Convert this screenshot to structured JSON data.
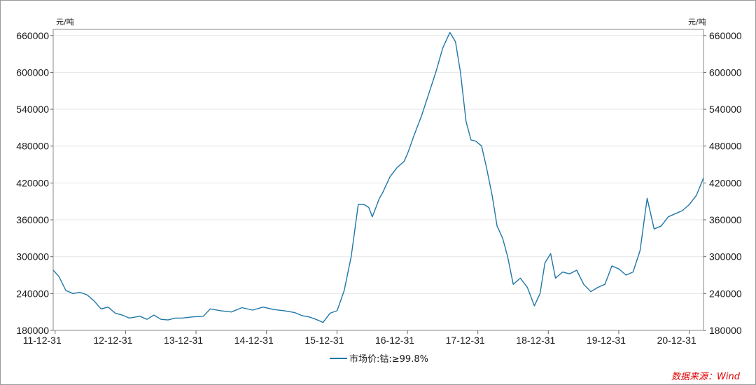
{
  "chart_data": {
    "type": "line",
    "unit_left": "元/吨",
    "unit_right": "元/吨",
    "ylim": [
      180000,
      670000
    ],
    "yticks": [
      180000,
      240000,
      300000,
      360000,
      420000,
      480000,
      540000,
      600000,
      660000
    ],
    "ytick_labels": [
      "180000",
      "240000",
      "300000",
      "360000",
      "420000",
      "480000",
      "540000",
      "600000",
      "660000"
    ],
    "xticks": [
      2011.9973,
      2012.9973,
      2013.9973,
      2014.9973,
      2015.9973,
      2016.9973,
      2017.9973,
      2018.9973,
      2019.9973,
      2020.9973
    ],
    "xtick_labels": [
      "11-12-31",
      "12-12-31",
      "13-12-31",
      "14-12-31",
      "15-12-31",
      "16-12-31",
      "17-12-31",
      "18-12-31",
      "19-12-31",
      "20-12-31"
    ],
    "xlim": [
      2011.97,
      2021.2
    ],
    "grid": true,
    "legend_position": "bottom-center",
    "series": [
      {
        "name": "市场价:钴:≥99.8%",
        "color": "#1f77a8",
        "x": [
          2011.97,
          2012.05,
          2012.15,
          2012.25,
          2012.35,
          2012.45,
          2012.55,
          2012.65,
          2012.75,
          2012.85,
          2012.95,
          2013.05,
          2013.2,
          2013.3,
          2013.4,
          2013.5,
          2013.6,
          2013.7,
          2013.8,
          2013.95,
          2014.1,
          2014.2,
          2014.35,
          2014.5,
          2014.65,
          2014.8,
          2014.95,
          2015.1,
          2015.25,
          2015.4,
          2015.5,
          2015.6,
          2015.7,
          2015.8,
          2015.9,
          2016.0,
          2016.1,
          2016.2,
          2016.3,
          2016.38,
          2016.45,
          2016.5,
          2016.55,
          2016.6,
          2016.65,
          2016.75,
          2016.85,
          2016.95,
          2017.0,
          2017.1,
          2017.2,
          2017.3,
          2017.4,
          2017.5,
          2017.6,
          2017.68,
          2017.75,
          2017.83,
          2017.9,
          2017.97,
          2018.05,
          2018.12,
          2018.2,
          2018.27,
          2018.35,
          2018.42,
          2018.5,
          2018.6,
          2018.7,
          2018.8,
          2018.88,
          2018.95,
          2019.03,
          2019.1,
          2019.2,
          2019.3,
          2019.4,
          2019.5,
          2019.6,
          2019.7,
          2019.8,
          2019.9,
          2020.0,
          2020.1,
          2020.2,
          2020.3,
          2020.4,
          2020.5,
          2020.6,
          2020.7,
          2020.8,
          2020.9,
          2021.0,
          2021.1,
          2021.2
        ],
        "values": [
          278000,
          268000,
          245000,
          240000,
          242000,
          238000,
          228000,
          215000,
          218000,
          208000,
          205000,
          200000,
          203000,
          198000,
          205000,
          198000,
          197000,
          200000,
          200000,
          202000,
          203000,
          215000,
          212000,
          210000,
          217000,
          213000,
          218000,
          214000,
          212000,
          209000,
          204000,
          202000,
          198000,
          193000,
          208000,
          212000,
          245000,
          300000,
          385000,
          385000,
          380000,
          365000,
          380000,
          395000,
          405000,
          430000,
          445000,
          455000,
          468000,
          500000,
          530000,
          565000,
          600000,
          640000,
          665000,
          650000,
          600000,
          520000,
          490000,
          488000,
          480000,
          445000,
          400000,
          350000,
          330000,
          300000,
          255000,
          265000,
          250000,
          220000,
          240000,
          290000,
          305000,
          265000,
          275000,
          272000,
          278000,
          255000,
          243000,
          250000,
          255000,
          285000,
          280000,
          270000,
          275000,
          310000,
          395000,
          345000,
          350000,
          365000,
          370000,
          375000,
          385000,
          400000,
          428000
        ]
      }
    ]
  },
  "source_text": "数据来源：Wind"
}
